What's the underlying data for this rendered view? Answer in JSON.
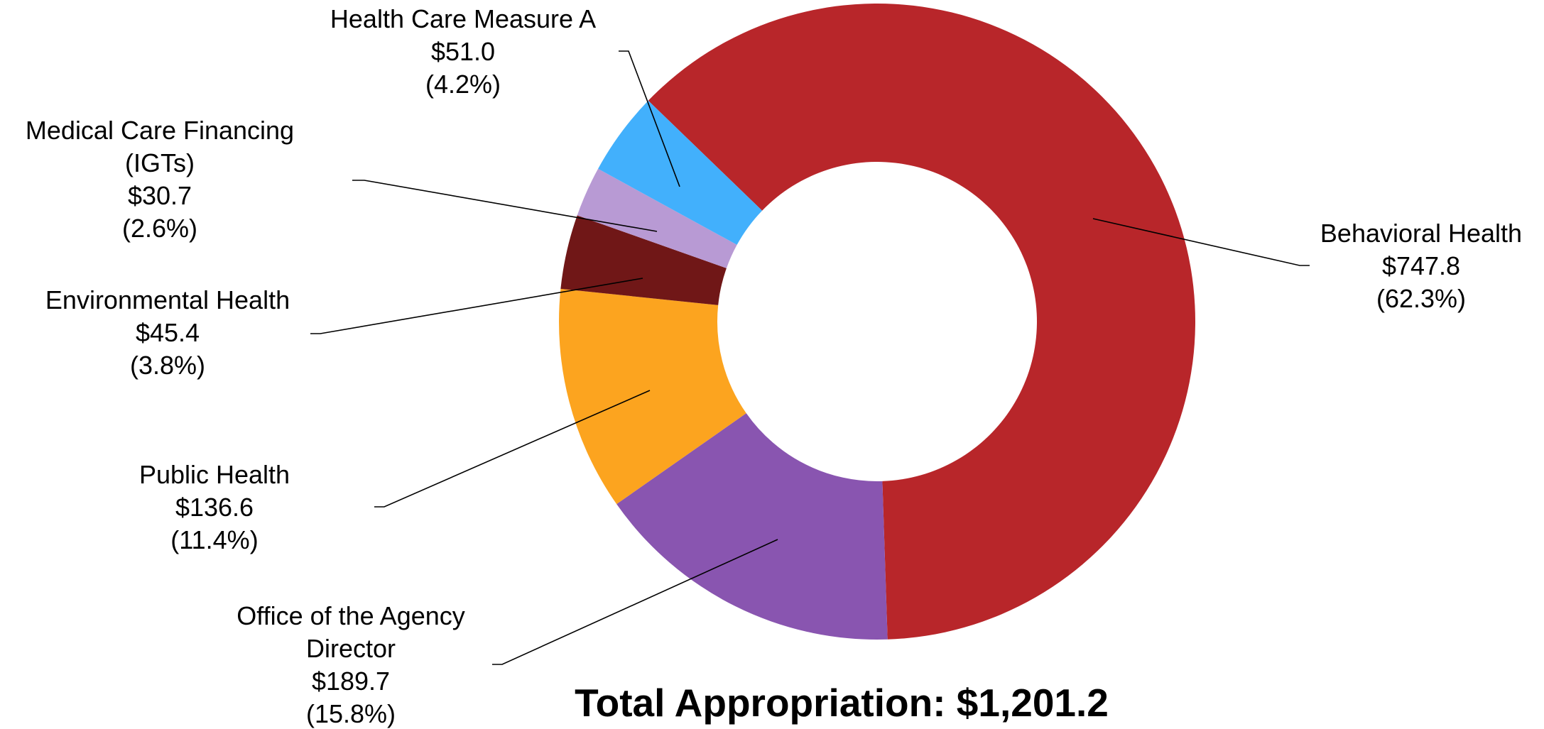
{
  "chart_data": {
    "type": "donut",
    "categories": [
      "Behavioral Health",
      "Office of the Agency Director",
      "Public Health",
      "Environmental Health",
      "Medical Care Financing (IGTs)",
      "Health Care Measure A"
    ],
    "values": [
      747.8,
      189.7,
      136.6,
      45.4,
      30.7,
      51.0
    ],
    "value_labels": [
      "$747.8",
      "$189.7",
      "$136.6",
      "$45.4",
      "$30.7",
      "$51.0"
    ],
    "percent_labels": [
      "(62.3%)",
      "(15.8%)",
      "(11.4%)",
      "(3.8%)",
      "(2.6%)",
      "(4.2%)"
    ],
    "colors": [
      "#b8262a",
      "#8955b0",
      "#fca41f",
      "#701717",
      "#b89ad4",
      "#42b0fc"
    ],
    "annotation": "Total Appropriation: $1,201.2"
  }
}
